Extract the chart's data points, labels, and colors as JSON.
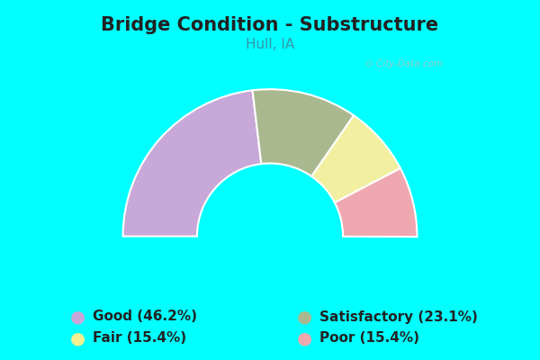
{
  "title": "Bridge Condition - Substructure",
  "subtitle": "Hull, IA",
  "background_color": "#00FFFF",
  "chart_bg_color": "#e8f4e8",
  "segments": [
    {
      "label": "Good (46.2%)",
      "value": 46.2,
      "color": "#c8a8d8"
    },
    {
      "label": "Satisfactory (23.1%)",
      "value": 23.1,
      "color": "#aab890"
    },
    {
      "label": "Fair (15.4%)",
      "value": 15.4,
      "color": "#f2f0a0"
    },
    {
      "label": "Poor (15.4%)",
      "value": 15.4,
      "color": "#f0a8b0"
    }
  ],
  "legend_marker_colors": [
    "#c8a8d8",
    "#aab890",
    "#f2f090",
    "#f0a8b0"
  ],
  "total": 100,
  "title_fontsize": 15,
  "subtitle_fontsize": 11,
  "legend_fontsize": 11,
  "title_color": "#222222",
  "subtitle_color": "#3399aa",
  "watermark": "City-Data.com"
}
